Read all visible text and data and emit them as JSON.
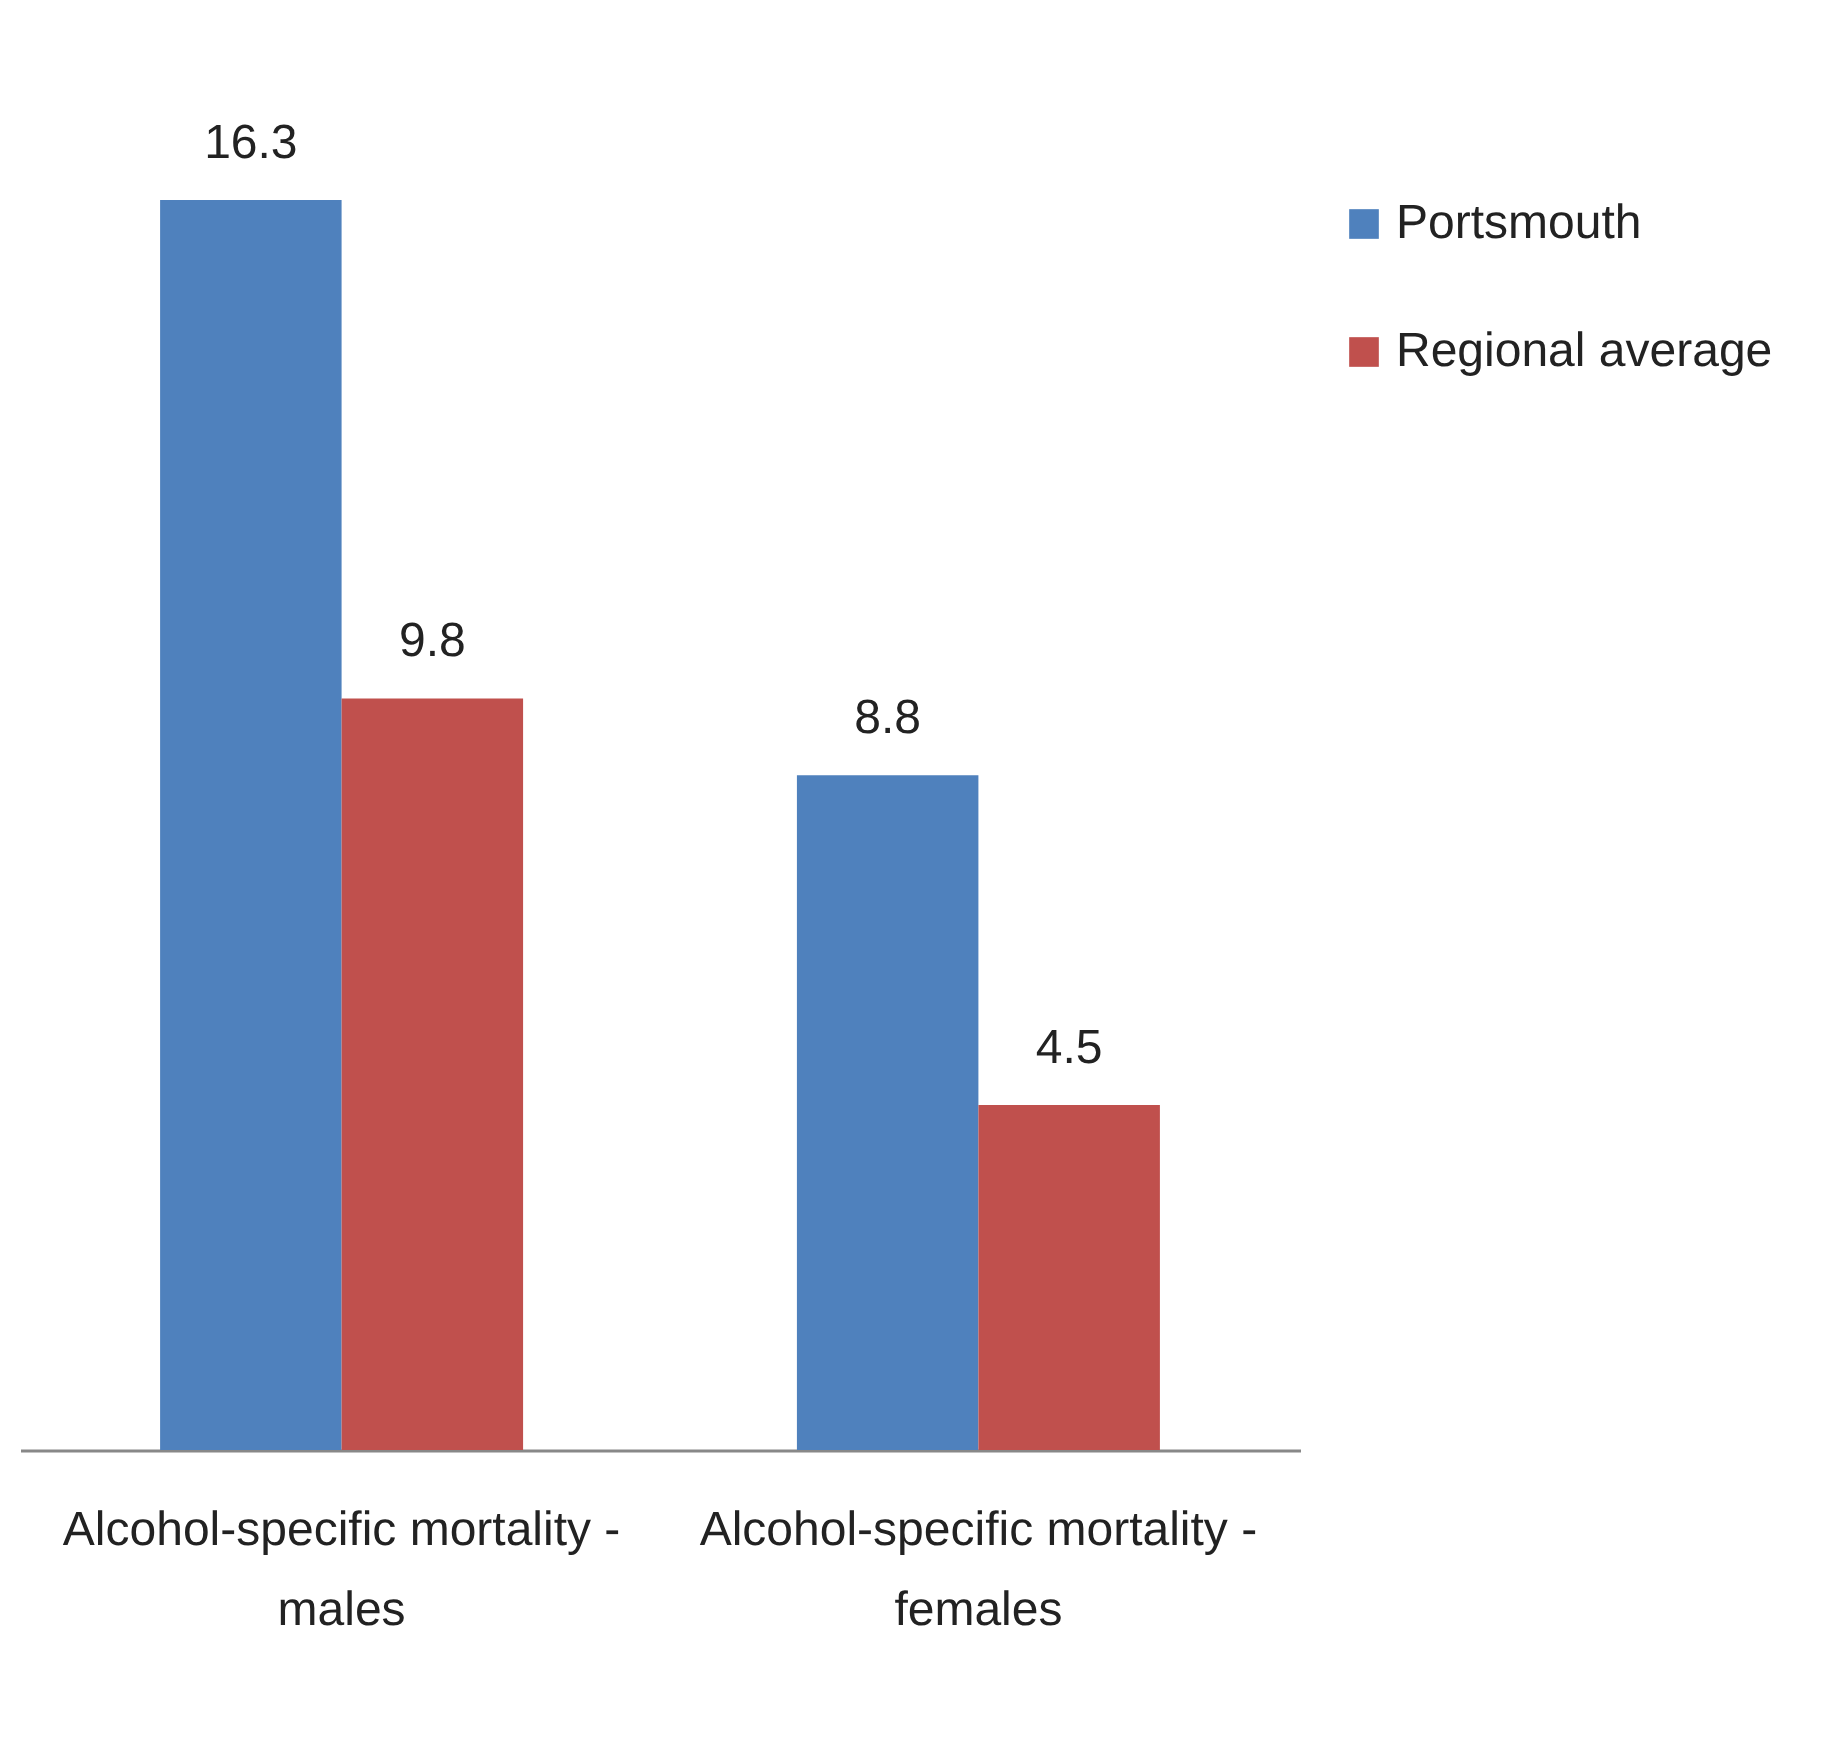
{
  "chart_data": {
    "type": "bar",
    "categories": [
      "Alcohol-specific mortality - males",
      "Alcohol-specific mortality - females"
    ],
    "series": [
      {
        "name": "Portsmouth",
        "color": "#4f81bd",
        "values": [
          16.3,
          8.8
        ]
      },
      {
        "name": "Regional average",
        "color": "#c0504d",
        "values": [
          9.8,
          4.5
        ]
      }
    ],
    "data_labels": true,
    "legend": "right",
    "grid": false
  }
}
